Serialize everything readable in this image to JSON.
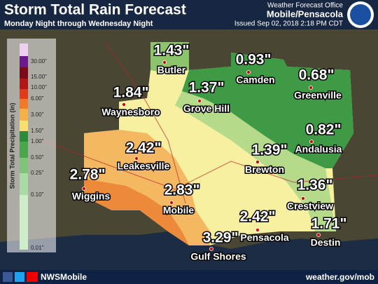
{
  "header": {
    "title": "Storm Total Rain Forecast",
    "subtitle": "Monday Night through Wednesday Night",
    "office": "Weather Forecast Office",
    "location": "Mobile/Pensacola",
    "issued": "Issued Sep 02, 2018 2:18 PM CDT"
  },
  "legend": {
    "title": "Storm Total Precipitation (in)",
    "ticks": [
      "30.00\"",
      "15.00\"",
      "10.00\"",
      "6.00\"",
      "3.00\"",
      "1.50\"",
      "1.00\"",
      "0.50\"",
      "0.25\"",
      "0.10\"",
      "0.01\""
    ]
  },
  "cities": [
    {
      "name": "Butler",
      "amount": "1.43\""
    },
    {
      "name": "Camden",
      "amount": "0.93\""
    },
    {
      "name": "Greenville",
      "amount": "0.68\""
    },
    {
      "name": "Waynesboro",
      "amount": "1.84\""
    },
    {
      "name": "Grove Hill",
      "amount": "1.37\""
    },
    {
      "name": "Andalusia",
      "amount": "0.82\""
    },
    {
      "name": "Leakesville",
      "amount": "2.42\""
    },
    {
      "name": "Brewton",
      "amount": "1.39\""
    },
    {
      "name": "Wiggins",
      "amount": "2.78\""
    },
    {
      "name": "Crestview",
      "amount": "1.36\""
    },
    {
      "name": "Mobile",
      "amount": "2.83\""
    },
    {
      "name": "Pensacola",
      "amount": "2.42\""
    },
    {
      "name": "Destin",
      "amount": "1.71\""
    },
    {
      "name": "Gulf Shores",
      "amount": "3.29\""
    }
  ],
  "footer": {
    "social": "NWSMobile",
    "url": "weather.gov/mob"
  }
}
